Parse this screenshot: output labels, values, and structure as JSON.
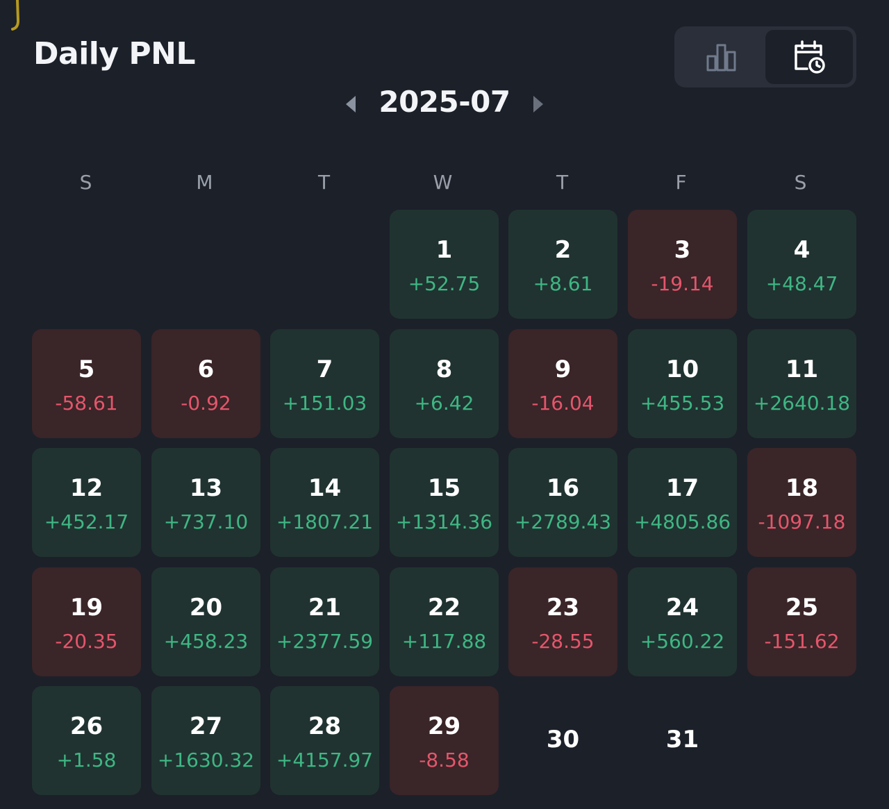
{
  "title": "Daily PNL",
  "month": "2025-07",
  "view_toggle": {
    "options": [
      {
        "icon": "bar-chart-icon",
        "active": false
      },
      {
        "icon": "calendar-clock-icon",
        "active": true
      }
    ]
  },
  "weekdays": [
    "S",
    "M",
    "T",
    "W",
    "T",
    "F",
    "S"
  ],
  "first_weekday_index": 3,
  "days": [
    {
      "day": "1",
      "pnl": "+52.75"
    },
    {
      "day": "2",
      "pnl": "+8.61"
    },
    {
      "day": "3",
      "pnl": "-19.14"
    },
    {
      "day": "4",
      "pnl": "+48.47"
    },
    {
      "day": "5",
      "pnl": "-58.61"
    },
    {
      "day": "6",
      "pnl": "-0.92"
    },
    {
      "day": "7",
      "pnl": "+151.03"
    },
    {
      "day": "8",
      "pnl": "+6.42"
    },
    {
      "day": "9",
      "pnl": "-16.04"
    },
    {
      "day": "10",
      "pnl": "+455.53"
    },
    {
      "day": "11",
      "pnl": "+2640.18"
    },
    {
      "day": "12",
      "pnl": "+452.17"
    },
    {
      "day": "13",
      "pnl": "+737.10"
    },
    {
      "day": "14",
      "pnl": "+1807.21"
    },
    {
      "day": "15",
      "pnl": "+1314.36"
    },
    {
      "day": "16",
      "pnl": "+2789.43"
    },
    {
      "day": "17",
      "pnl": "+4805.86"
    },
    {
      "day": "18",
      "pnl": "-1097.18"
    },
    {
      "day": "19",
      "pnl": "-20.35"
    },
    {
      "day": "20",
      "pnl": "+458.23"
    },
    {
      "day": "21",
      "pnl": "+2377.59"
    },
    {
      "day": "22",
      "pnl": "+117.88"
    },
    {
      "day": "23",
      "pnl": "-28.55"
    },
    {
      "day": "24",
      "pnl": "+560.22"
    },
    {
      "day": "25",
      "pnl": "-151.62"
    },
    {
      "day": "26",
      "pnl": "+1.58"
    },
    {
      "day": "27",
      "pnl": "+1630.32"
    },
    {
      "day": "28",
      "pnl": "+4157.97"
    },
    {
      "day": "29",
      "pnl": "-8.58"
    },
    {
      "day": "30",
      "pnl": ""
    },
    {
      "day": "31",
      "pnl": ""
    }
  ],
  "colors": {
    "background": "#1c2029",
    "positive_text": "#3fb684",
    "negative_text": "#e4566c",
    "positive_cell": "#203330",
    "negative_cell": "#3a2528"
  }
}
